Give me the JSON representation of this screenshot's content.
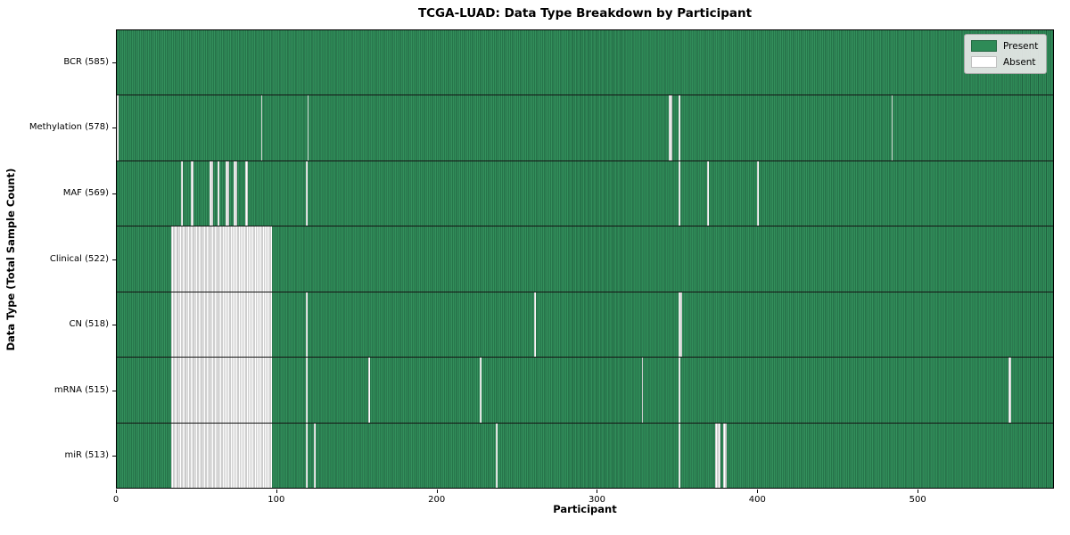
{
  "figure": {
    "title": "TCGA-LUAD: Data Type Breakdown by Participant",
    "xlabel": "Participant",
    "ylabel": "Data Type (Total Sample Count)"
  },
  "legend": {
    "position": "upper right",
    "items": [
      {
        "label": "Present",
        "color": "#2e8b57"
      },
      {
        "label": "Absent",
        "color": "#ffffff"
      }
    ]
  },
  "chart_data": {
    "type": "heatmap",
    "title": "TCGA-LUAD: Data Type Breakdown by Participant",
    "xlabel": "Participant",
    "ylabel": "Data Type (Total Sample Count)",
    "x_range": [
      0,
      585
    ],
    "x_ticks": [
      0,
      100,
      200,
      300,
      400,
      500
    ],
    "total_participants": 585,
    "grid": false,
    "colors": {
      "present_fill": "#2e8b57",
      "present_edge": "#1f5f3e",
      "absent_fill": "#ffffff",
      "absent_edge": "#9d9d9d",
      "row_separator": "#141414"
    },
    "rows": [
      {
        "data_type": "BCR",
        "label": "BCR (585)",
        "present_count": 585,
        "absent_ranges": []
      },
      {
        "data_type": "Methylation",
        "label": "Methylation (578)",
        "present_count": 578,
        "absent_ranges": [
          [
            0,
            1
          ],
          [
            90,
            91
          ],
          [
            119,
            120
          ],
          [
            345,
            347
          ],
          [
            351,
            352
          ],
          [
            484,
            485
          ]
        ]
      },
      {
        "data_type": "MAF",
        "label": "MAF (569)",
        "present_count": 569,
        "absent_ranges": [
          [
            40,
            41
          ],
          [
            46,
            48
          ],
          [
            58,
            60
          ],
          [
            63,
            64
          ],
          [
            68,
            70
          ],
          [
            73,
            75
          ],
          [
            80,
            82
          ],
          [
            118,
            119
          ],
          [
            351,
            352
          ],
          [
            369,
            370
          ],
          [
            400,
            401
          ]
        ]
      },
      {
        "data_type": "Clinical",
        "label": "Clinical (522)",
        "present_count": 522,
        "absent_ranges": [
          [
            34,
            97
          ]
        ]
      },
      {
        "data_type": "CN",
        "label": "CN (518)",
        "present_count": 518,
        "absent_ranges": [
          [
            34,
            97
          ],
          [
            118,
            119
          ],
          [
            261,
            262
          ],
          [
            351,
            353
          ]
        ]
      },
      {
        "data_type": "mRNA",
        "label": "mRNA (515)",
        "present_count": 515,
        "absent_ranges": [
          [
            34,
            97
          ],
          [
            118,
            119
          ],
          [
            157,
            158
          ],
          [
            227,
            228
          ],
          [
            328,
            329
          ],
          [
            351,
            352
          ],
          [
            557,
            559
          ]
        ]
      },
      {
        "data_type": "miR",
        "label": "miR (513)",
        "present_count": 513,
        "absent_ranges": [
          [
            34,
            97
          ],
          [
            118,
            119
          ],
          [
            123,
            124
          ],
          [
            237,
            238
          ],
          [
            351,
            352
          ],
          [
            374,
            377
          ],
          [
            379,
            381
          ]
        ]
      }
    ]
  }
}
